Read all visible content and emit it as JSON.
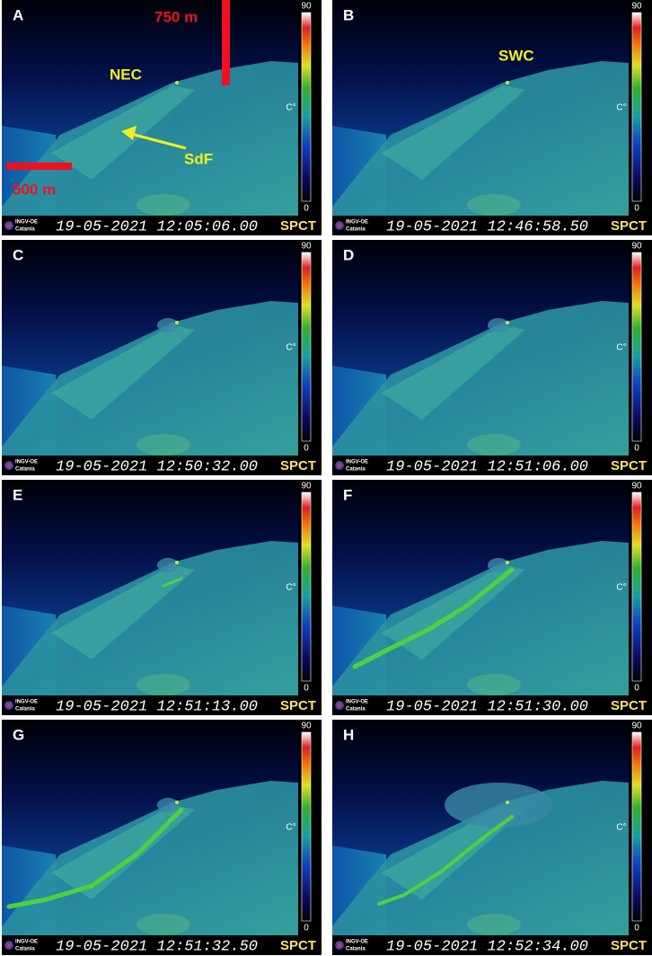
{
  "panels": [
    {
      "label": "A",
      "scale_max": "90",
      "scale_unit": "C°",
      "scale_min": "0",
      "logo": "INGV-OE",
      "logo_city": "Catania",
      "timestamp": "19-05-2021 12:05:06.00",
      "camera": "SPCT",
      "annotations": [
        {
          "text": "750 m",
          "color": "red"
        },
        {
          "text": "NEC",
          "color": "yellow"
        },
        {
          "text": "SdF",
          "color": "yellow"
        },
        {
          "text": "500 m",
          "color": "red"
        }
      ]
    },
    {
      "label": "B",
      "scale_max": "90",
      "scale_unit": "C°",
      "scale_min": "0",
      "logo": "INGV-OE",
      "logo_city": "Catania",
      "timestamp": "19-05-2021 12:46:58.50",
      "camera": "SPCT",
      "annotations": [
        {
          "text": "SWC",
          "color": "yellow"
        }
      ]
    },
    {
      "label": "C",
      "scale_max": "90",
      "scale_unit": "C°",
      "scale_min": "0",
      "logo": "INGV-OE",
      "logo_city": "Catania",
      "timestamp": "19-05-2021 12:50:32.00",
      "camera": "SPCT",
      "annotations": []
    },
    {
      "label": "D",
      "scale_max": "90",
      "scale_unit": "C°",
      "scale_min": "0",
      "logo": "INGV-OE",
      "logo_city": "Catania",
      "timestamp": "19-05-2021 12:51:06.00",
      "camera": "SPCT",
      "annotations": []
    },
    {
      "label": "E",
      "scale_max": "90",
      "scale_unit": "C°",
      "scale_min": "0",
      "logo": "INGV-OE",
      "logo_city": "Catania",
      "timestamp": "19-05-2021 12:51:13.00",
      "camera": "SPCT",
      "annotations": []
    },
    {
      "label": "F",
      "scale_max": "90",
      "scale_unit": "C°",
      "scale_min": "0",
      "logo": "INGV-OE",
      "logo_city": "Catania",
      "timestamp": "19-05-2021 12:51:30.00",
      "camera": "SPCT",
      "annotations": []
    },
    {
      "label": "G",
      "scale_max": "90",
      "scale_unit": "C°",
      "scale_min": "0",
      "logo": "INGV-OE",
      "logo_city": "Catania",
      "timestamp": "19-05-2021 12:51:32.50",
      "camera": "SPCT",
      "annotations": []
    },
    {
      "label": "H",
      "scale_max": "90",
      "scale_unit": "C°",
      "scale_min": "0",
      "logo": "INGV-OE",
      "logo_city": "Catania",
      "timestamp": "19-05-2021 12:52:34.00",
      "camera": "SPCT",
      "annotations": []
    }
  ]
}
